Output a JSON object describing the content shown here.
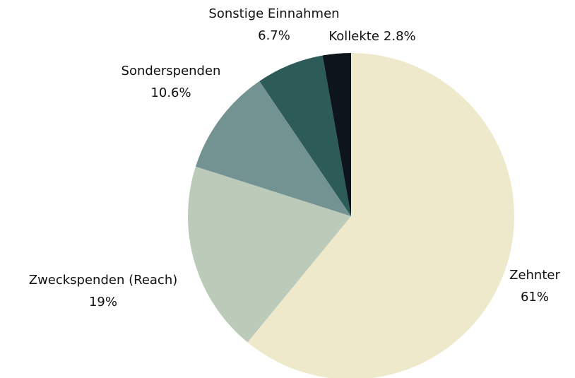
{
  "chart_data": {
    "type": "pie",
    "categories": [
      "Zehnter",
      "Zweckspenden (Reach)",
      "Sonderspenden",
      "Sonstige Einnahmen",
      "Kollekte"
    ],
    "values": [
      61,
      19,
      10.6,
      6.7,
      2.8
    ],
    "value_labels": [
      "61%",
      "19%",
      "10.6%",
      "6.7%",
      "2.8%"
    ],
    "colors": [
      "#efe9cc",
      "#bccaba",
      "#729391",
      "#2c5b58",
      "#0d141b"
    ]
  }
}
